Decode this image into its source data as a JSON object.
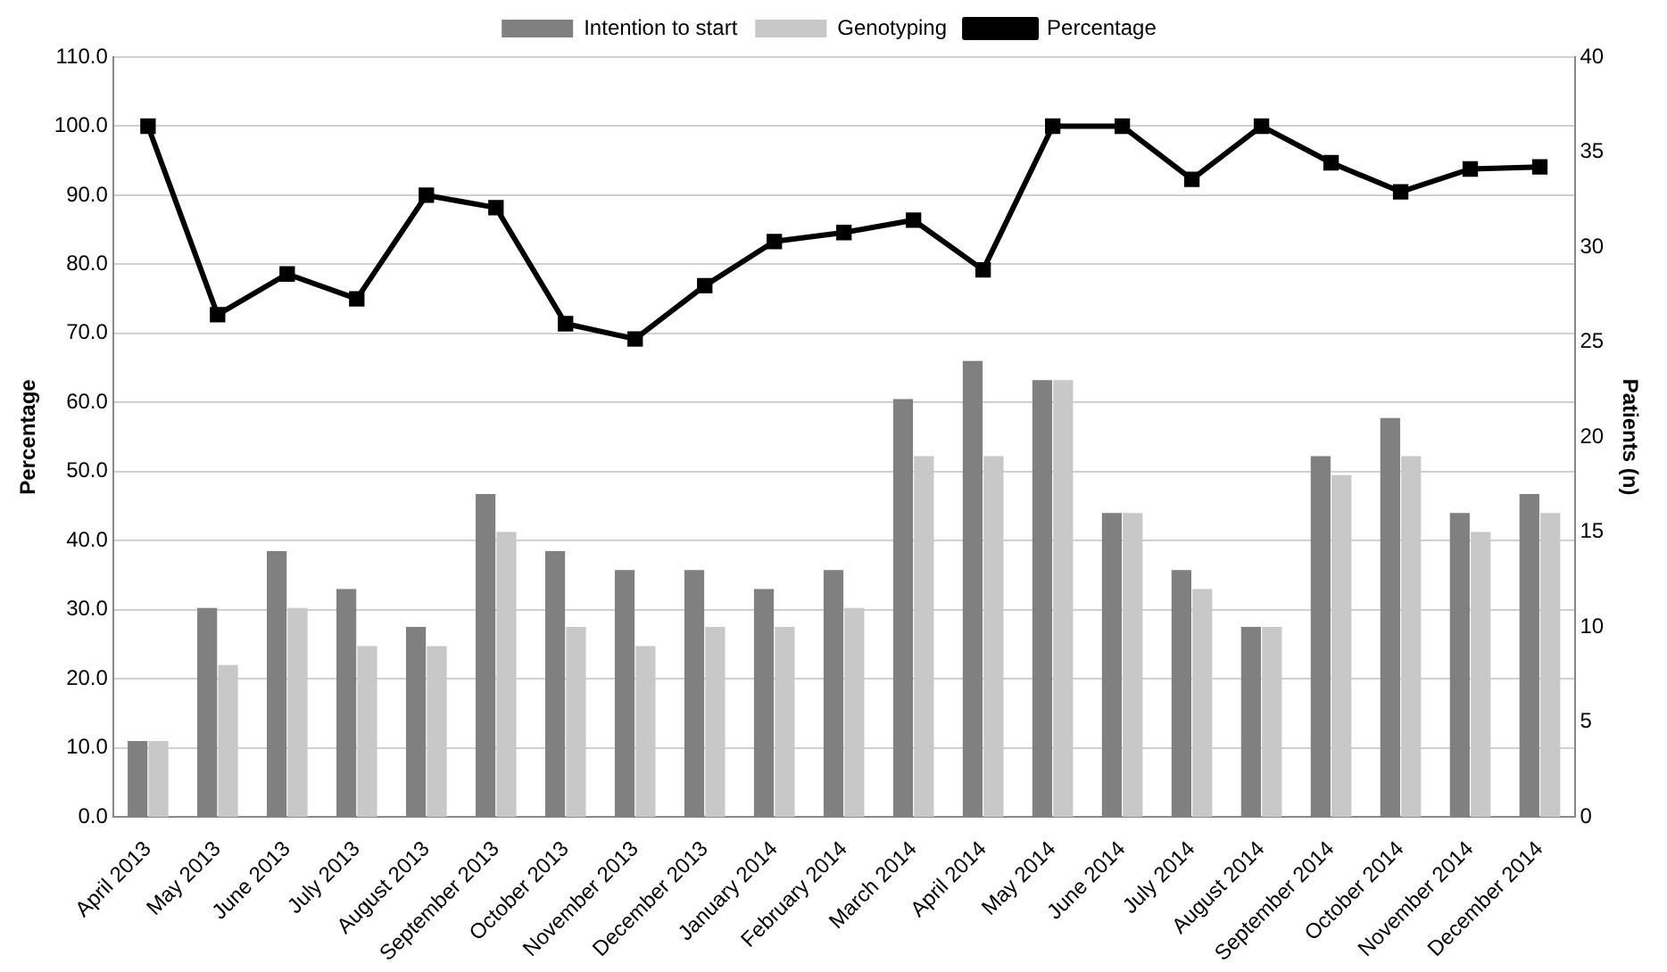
{
  "chart_data": {
    "type": "bar",
    "ylabel": "Percentage",
    "y2label": "Patients (n)",
    "categories": [
      "April 2013",
      "May 2013",
      "June 2013",
      "July 2013",
      "August 2013",
      "September 2013",
      "October 2013",
      "November 2013",
      "December 2013",
      "January 2014",
      "February 2014",
      "March 2014",
      "April 2014",
      "May 2014",
      "June 2014",
      "July 2014",
      "August 2014",
      "September 2014",
      "October 2014",
      "November 2014",
      "December 2014"
    ],
    "series": [
      {
        "name": "Intention to start",
        "axis": "y2",
        "color": "#808080",
        "values": [
          4,
          11,
          14,
          12,
          10,
          17,
          14,
          13,
          13,
          12,
          13,
          22,
          24,
          23,
          16,
          13,
          10,
          19,
          21,
          16,
          17
        ]
      },
      {
        "name": "Genotyping",
        "axis": "y2",
        "color": "#c8c8c8",
        "values": [
          4,
          8,
          11,
          9,
          9,
          15,
          10,
          9,
          10,
          10,
          11,
          19,
          19,
          23,
          16,
          12,
          10,
          18,
          19,
          15,
          16
        ]
      },
      {
        "name": "Percentage",
        "type": "line",
        "axis": "y",
        "color": "#000000",
        "marker": "square",
        "line_style": "solid",
        "values": [
          100.0,
          72.7,
          78.6,
          75.0,
          90.0,
          88.2,
          71.4,
          69.2,
          76.9,
          83.3,
          84.6,
          86.4,
          79.2,
          100.0,
          100.0,
          92.3,
          100.0,
          94.7,
          90.5,
          93.8,
          94.1
        ]
      }
    ],
    "ylim": [
      0,
      110
    ],
    "yticks": [
      {
        "value": 0,
        "label": "0.0"
      },
      {
        "value": 10,
        "label": "10.0"
      },
      {
        "value": 20,
        "label": "20.0"
      },
      {
        "value": 30,
        "label": "30.0"
      },
      {
        "value": 40,
        "label": "40.0"
      },
      {
        "value": 50,
        "label": "50.0"
      },
      {
        "value": 60,
        "label": "60.0"
      },
      {
        "value": 70,
        "label": "70.0"
      },
      {
        "value": 80,
        "label": "80.0"
      },
      {
        "value": 90,
        "label": "90.0"
      },
      {
        "value": 100,
        "label": "100.0"
      },
      {
        "value": 110,
        "label": "110.0"
      }
    ],
    "y2lim": [
      0,
      40
    ],
    "y2ticks": [
      0,
      5,
      10,
      15,
      20,
      25,
      30,
      35,
      40
    ],
    "grid": "y",
    "legend": "top"
  }
}
